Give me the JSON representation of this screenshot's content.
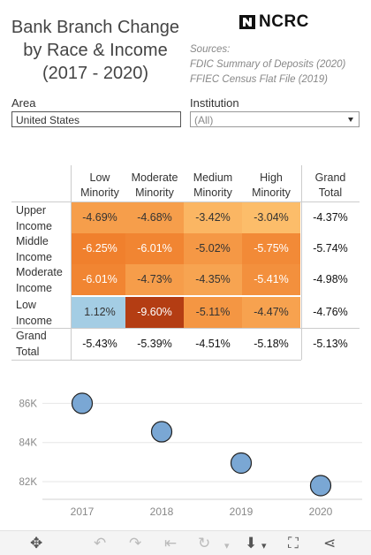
{
  "title": [
    "Bank Branch Change",
    "by Race & Income",
    "(2017 - 2020)"
  ],
  "logo": {
    "text": "NCRC"
  },
  "sources": [
    "Sources:",
    "FDIC Summary of Deposits (2020)",
    "FFIEC Census Flat File (2019)"
  ],
  "filters": {
    "area": {
      "label": "Area",
      "value": "United States"
    },
    "institution": {
      "label": "Institution",
      "value": "(All)"
    }
  },
  "toolbar": {
    "icons": [
      "move-icon",
      "undo-icon",
      "redo-icon",
      "revert-icon",
      "refresh-icon",
      "download-icon",
      "fullscreen-icon",
      "share-icon"
    ]
  },
  "chart_data": [
    {
      "type": "heatmap",
      "columns": [
        [
          "Low",
          "Minority"
        ],
        [
          "Moderate",
          "Minority"
        ],
        [
          "Medium",
          "Minority"
        ],
        [
          "High",
          "Minority"
        ],
        [
          "Grand",
          "Total"
        ]
      ],
      "rows": [
        [
          "Upper",
          "Income"
        ],
        [
          "Middle",
          "Income"
        ],
        [
          "Moderate",
          "Income"
        ],
        [
          "Low",
          "Income"
        ],
        [
          "Grand",
          "Total"
        ]
      ],
      "values": [
        [
          -4.69,
          -4.68,
          -3.42,
          -3.04
        ],
        [
          -6.25,
          -6.01,
          -5.02,
          -5.75
        ],
        [
          -6.01,
          -4.73,
          -4.35,
          -5.41
        ],
        [
          1.12,
          -9.6,
          -5.11,
          -4.47
        ]
      ],
      "row_totals": [
        -4.37,
        -5.74,
        -4.98,
        -4.76
      ],
      "column_totals": [
        -5.43,
        -5.39,
        -4.51,
        -5.18
      ],
      "grand_total": -5.13,
      "colors": {
        "low": "#fcbd6a",
        "mid": "#f07f2c",
        "high": "#b43d13",
        "positive": "#a4cde4"
      }
    },
    {
      "type": "scatter",
      "x": [
        2017,
        2018,
        2019,
        2020
      ],
      "y": [
        86000,
        84550,
        82950,
        81800
      ],
      "y_ticks": [
        82000,
        84000,
        86000
      ],
      "y_tick_labels": [
        "82K",
        "84K",
        "86K"
      ],
      "x_tick_labels": [
        "2017",
        "2018",
        "2019",
        "2020"
      ],
      "ylim": [
        81100,
        87100
      ],
      "grid": "horizontal",
      "colors": {
        "marker": "#7aa7d4",
        "edge": "#222222"
      }
    }
  ]
}
